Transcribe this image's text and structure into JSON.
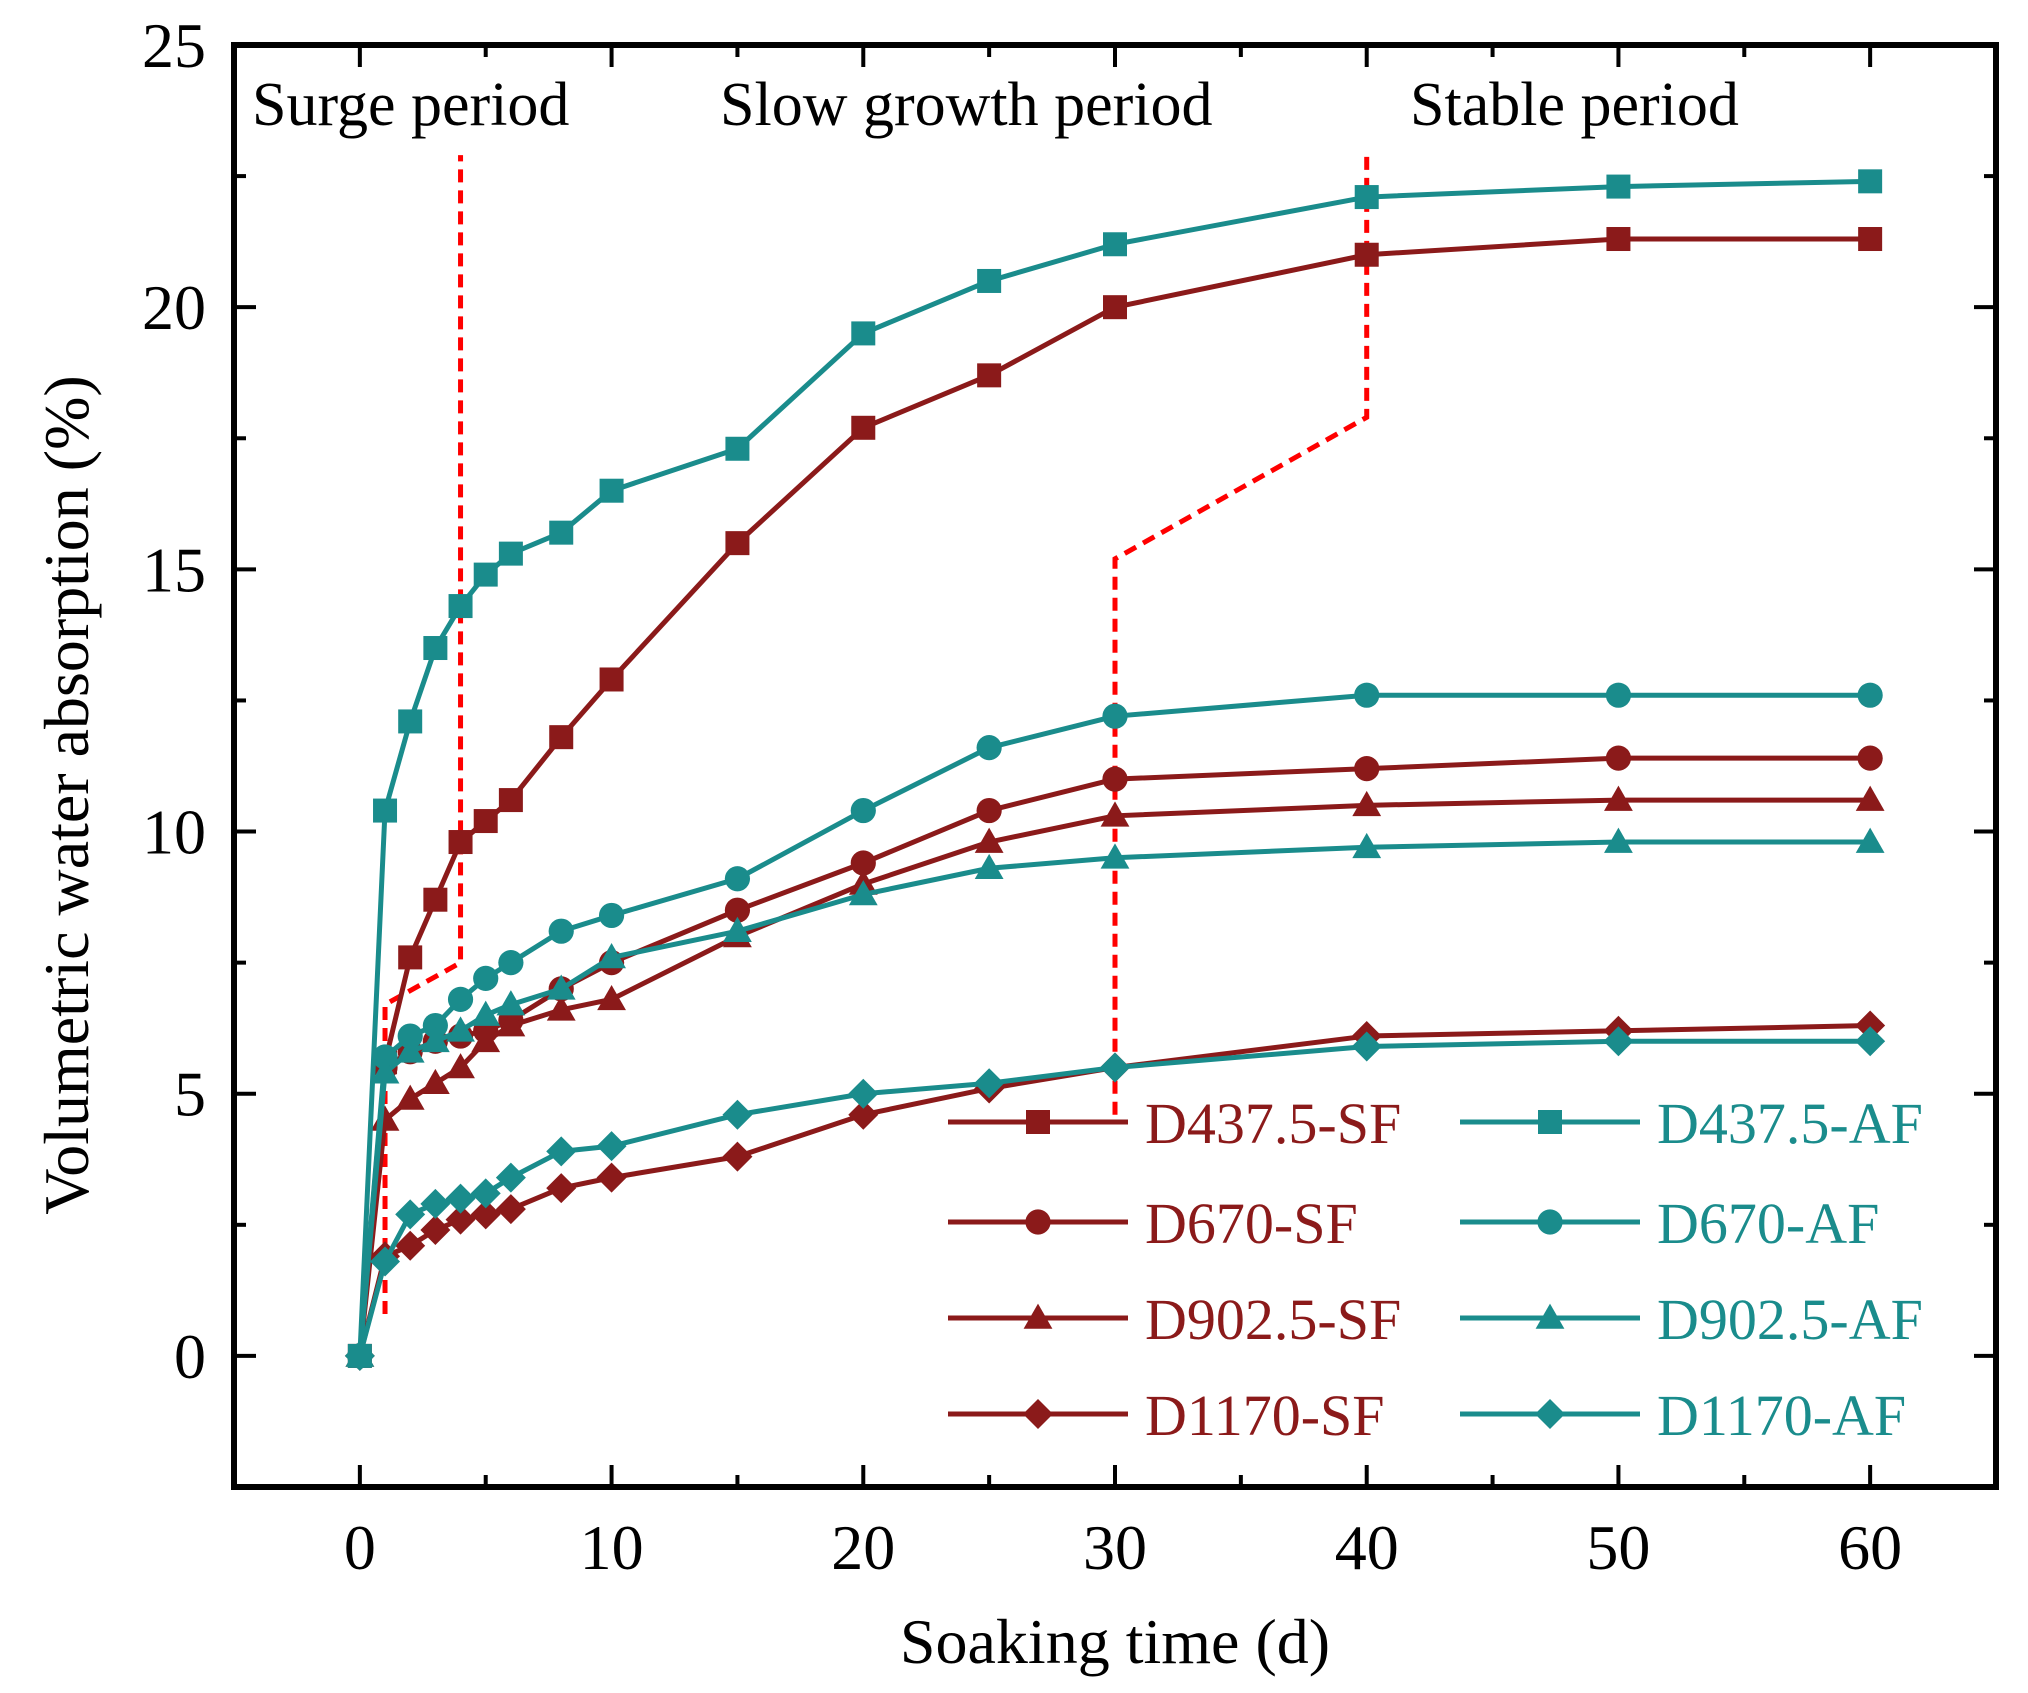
{
  "chart_data": {
    "type": "line",
    "title": "",
    "xlabel": "Soaking time (d)",
    "ylabel": "Volumetric water absorption (%)",
    "xlim": [
      -5,
      65
    ],
    "ylim": [
      -2.5,
      25
    ],
    "xticks": [
      0,
      10,
      20,
      30,
      40,
      50,
      60
    ],
    "xtick_labels": [
      "0",
      "10",
      "20",
      "30",
      "40",
      "50",
      "60"
    ],
    "yticks": [
      0,
      5,
      10,
      15,
      20,
      25
    ],
    "ytick_labels": [
      "0",
      "5",
      "10",
      "15",
      "20",
      "25"
    ],
    "grid": false,
    "legend_position": "bottom-right",
    "colors": {
      "SF": "#8b1a1a",
      "AF": "#1a8c8c",
      "divider": "#ff0000"
    },
    "period_labels": [
      "Surge period",
      "Slow growth period",
      "Stable period"
    ],
    "series": [
      {
        "name": "D437.5-SF",
        "group": "SF",
        "marker": "square",
        "x": [
          0,
          1,
          2,
          3,
          4,
          5,
          6,
          8,
          10,
          15,
          20,
          25,
          30,
          40,
          50,
          60
        ],
        "y": [
          0,
          5.6,
          7.6,
          8.7,
          9.8,
          10.2,
          10.6,
          11.8,
          12.9,
          15.5,
          17.7,
          18.7,
          20.0,
          21.0,
          21.3,
          21.3
        ]
      },
      {
        "name": "D670-SF",
        "group": "SF",
        "marker": "circle",
        "x": [
          0,
          1,
          2,
          3,
          4,
          5,
          6,
          8,
          10,
          15,
          20,
          25,
          30,
          40,
          50,
          60
        ],
        "y": [
          0,
          5.5,
          5.8,
          6.0,
          6.1,
          6.2,
          6.4,
          7.0,
          7.5,
          8.5,
          9.4,
          10.4,
          11.0,
          11.2,
          11.4,
          11.4
        ]
      },
      {
        "name": "D902.5-SF",
        "group": "SF",
        "marker": "triangle",
        "x": [
          0,
          1,
          2,
          3,
          4,
          5,
          6,
          8,
          10,
          15,
          20,
          25,
          30,
          40,
          50,
          60
        ],
        "y": [
          0,
          4.5,
          4.9,
          5.2,
          5.5,
          6.0,
          6.3,
          6.6,
          6.8,
          8.0,
          9.0,
          9.8,
          10.3,
          10.5,
          10.6,
          10.6
        ]
      },
      {
        "name": "D1170-SF",
        "group": "SF",
        "marker": "diamond",
        "x": [
          0,
          1,
          2,
          3,
          4,
          5,
          6,
          8,
          10,
          15,
          20,
          25,
          30,
          40,
          50,
          60
        ],
        "y": [
          0,
          1.9,
          2.1,
          2.4,
          2.6,
          2.7,
          2.8,
          3.2,
          3.4,
          3.8,
          4.6,
          5.1,
          5.5,
          6.1,
          6.2,
          6.3
        ]
      },
      {
        "name": "D437.5-AF",
        "group": "AF",
        "marker": "square",
        "x": [
          0,
          1,
          2,
          3,
          4,
          5,
          6,
          8,
          10,
          15,
          20,
          25,
          30,
          40,
          50,
          60
        ],
        "y": [
          0,
          10.4,
          12.1,
          13.5,
          14.3,
          14.9,
          15.3,
          15.7,
          16.5,
          17.3,
          19.5,
          20.5,
          21.2,
          22.1,
          22.3,
          22.4
        ]
      },
      {
        "name": "D670-AF",
        "group": "AF",
        "marker": "circle",
        "x": [
          0,
          1,
          2,
          3,
          4,
          5,
          6,
          8,
          10,
          15,
          20,
          25,
          30,
          40,
          50,
          60
        ],
        "y": [
          0,
          5.7,
          6.1,
          6.3,
          6.8,
          7.2,
          7.5,
          8.1,
          8.4,
          9.1,
          10.4,
          11.6,
          12.2,
          12.6,
          12.6,
          12.6
        ]
      },
      {
        "name": "D902.5-AF",
        "group": "AF",
        "marker": "triangle",
        "x": [
          0,
          1,
          2,
          3,
          4,
          5,
          6,
          8,
          10,
          15,
          20,
          25,
          30,
          40,
          50,
          60
        ],
        "y": [
          0,
          5.4,
          5.8,
          6.0,
          6.2,
          6.5,
          6.7,
          7.0,
          7.6,
          8.1,
          8.8,
          9.3,
          9.5,
          9.7,
          9.8,
          9.8
        ]
      },
      {
        "name": "D1170-AF",
        "group": "AF",
        "marker": "diamond",
        "x": [
          0,
          1,
          2,
          3,
          4,
          5,
          6,
          8,
          10,
          15,
          20,
          25,
          30,
          40,
          50,
          60
        ],
        "y": [
          0,
          1.8,
          2.7,
          2.9,
          3.0,
          3.1,
          3.4,
          3.9,
          4.0,
          4.6,
          5.0,
          5.2,
          5.5,
          5.9,
          6.0,
          6.0
        ]
      }
    ],
    "dividers": [
      {
        "name": "surge-boundary",
        "points": [
          [
            1,
            0.8
          ],
          [
            1,
            6.7
          ],
          [
            4,
            7.5
          ],
          [
            4,
            22.9
          ]
        ]
      },
      {
        "name": "stable-boundary",
        "points": [
          [
            30,
            4.6
          ],
          [
            30,
            15.2
          ],
          [
            40,
            17.9
          ],
          [
            40,
            22.9
          ]
        ]
      }
    ]
  }
}
